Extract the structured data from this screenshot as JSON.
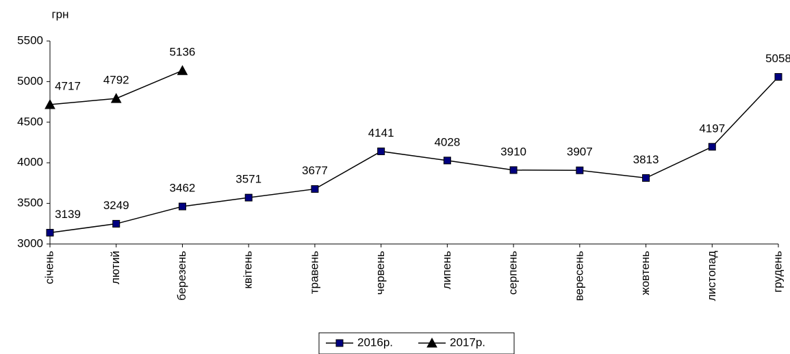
{
  "chart_data": {
    "type": "line",
    "y_label": "грн",
    "categories": [
      "січень",
      "лютий",
      "березень",
      "квітень",
      "травень",
      "червень",
      "липень",
      "серпень",
      "вересень",
      "жовтень",
      "листопад",
      "грудень"
    ],
    "series": [
      {
        "name": "2016р.",
        "color": "#000080",
        "marker": "square",
        "values": [
          3139,
          3249,
          3462,
          3571,
          3677,
          4141,
          4028,
          3910,
          3907,
          3813,
          4197,
          5058
        ]
      },
      {
        "name": "2017р.",
        "color": "#000000",
        "marker": "triangle",
        "values": [
          4717,
          4792,
          5136,
          null,
          null,
          null,
          null,
          null,
          null,
          null,
          null,
          null
        ]
      }
    ],
    "ylim": [
      3000,
      5500
    ],
    "yticks": [
      3000,
      3500,
      4000,
      4500,
      5000,
      5500
    ],
    "grid": false,
    "legend": "bottom"
  }
}
